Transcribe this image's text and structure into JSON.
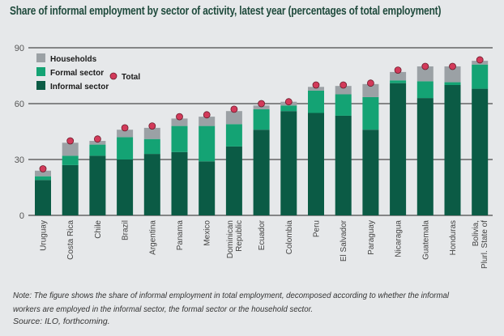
{
  "title": "Share of informal employment by sector of activity, latest year (percentages of total employment)",
  "note": "Note: The figure shows the share of informal employment in total employment, decomposed according to whether the informal workers are employed in the informal sector, the formal sector or the household sector.",
  "source": "Source: ILO, forthcoming.",
  "colors": {
    "informal_sector": "#0b5b45",
    "formal_sector": "#14a374",
    "households": "#9ba1a5",
    "total": "#d23a5a",
    "total_outline": "#6a1a2a",
    "gridline": "#222222"
  },
  "chart_data": {
    "type": "bar",
    "stacked": true,
    "title": "Share of informal employment by sector of activity, latest year (percentages of total employment)",
    "xlabel": "",
    "ylabel": "",
    "ylim": [
      0,
      90
    ],
    "yticks": [
      0,
      30,
      60,
      90
    ],
    "grid": true,
    "legend_position": "top-left",
    "categories": [
      "Uruguay",
      "Costa Rica",
      "Chile",
      "Brazil",
      "Argentina",
      "Panama",
      "Mexico",
      "Dominican Republic",
      "Ecuador",
      "Colombia",
      "Peru",
      "El Salvador",
      "Paraguay",
      "Nicaragua",
      "Guatemala",
      "Honduras",
      "Bolivia, Plurl. State of"
    ],
    "category_label_lines": [
      [
        "Uruguay"
      ],
      [
        "Costa Rica"
      ],
      [
        "Chile"
      ],
      [
        "Brazil"
      ],
      [
        "Argentina"
      ],
      [
        "Panama"
      ],
      [
        "Mexico"
      ],
      [
        "Dominican",
        "Republic"
      ],
      [
        "Ecuador"
      ],
      [
        "Colombia"
      ],
      [
        "Peru"
      ],
      [
        "El Salvador"
      ],
      [
        "Paraguay"
      ],
      [
        "Nicaragua"
      ],
      [
        "Guatemala"
      ],
      [
        "Honduras"
      ],
      [
        "Bolivia,",
        "Plurl. State of"
      ]
    ],
    "series": [
      {
        "name": "Informal sector",
        "key": "informal_sector",
        "values": [
          19,
          27,
          32,
          30,
          33,
          34,
          29,
          37,
          46,
          56,
          55,
          53.5,
          46,
          71,
          63,
          70,
          68
        ]
      },
      {
        "name": "Formal sector",
        "key": "formal_sector",
        "values": [
          2,
          5,
          6,
          12,
          8,
          14,
          19,
          12,
          11,
          3,
          12,
          11.5,
          17.5,
          1.5,
          9,
          1.5,
          13
        ]
      },
      {
        "name": "Households",
        "key": "households",
        "values": [
          3,
          7,
          2,
          4,
          6,
          4,
          5,
          7,
          2,
          2,
          2,
          4.5,
          7,
          4.5,
          8,
          8.5,
          2
        ]
      }
    ],
    "total": {
      "name": "Total",
      "values": [
        25,
        40,
        41,
        47,
        48,
        53,
        54,
        57,
        60,
        61,
        70,
        70,
        71,
        78,
        80,
        80,
        83.5
      ]
    },
    "legend": [
      {
        "label": "Households",
        "key": "households",
        "shape": "square"
      },
      {
        "label": "Formal sector",
        "key": "formal_sector",
        "shape": "square"
      },
      {
        "label": "Informal sector",
        "key": "informal_sector",
        "shape": "square"
      },
      {
        "label": "Total",
        "key": "total",
        "shape": "circle"
      }
    ]
  }
}
